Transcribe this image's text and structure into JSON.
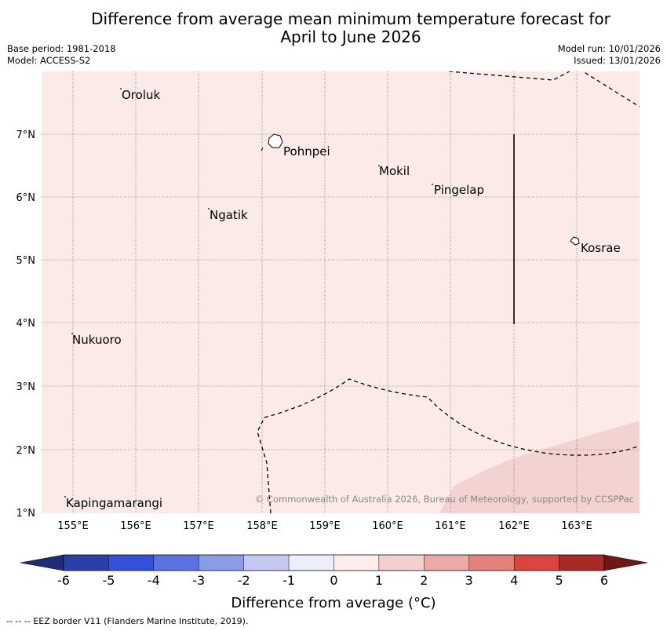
{
  "header": {
    "title_line1": "Difference from average mean minimum temperature forecast for",
    "title_line2": "April to June 2026",
    "base_period": "Base period: 1981-2018",
    "model": "Model: ACCESS-S2",
    "model_run": "Model run: 10/01/2026",
    "issued": "Issued: 13/01/2026"
  },
  "map": {
    "background_color": "#fbeae8",
    "warm_region_color": "#f2d3d1",
    "lat_labels": [
      "7°N",
      "6°N",
      "5°N",
      "4°N",
      "3°N",
      "2°N",
      "1°N"
    ],
    "lon_labels": [
      "155°E",
      "156°E",
      "157°E",
      "158°E",
      "159°E",
      "160°E",
      "161°E",
      "162°E",
      "163°E"
    ],
    "places": [
      "Oroluk",
      "Pohnpei",
      "Mokil",
      "Pingelap",
      "Ngatik",
      "Kosrae",
      "Nukuoro",
      "Kapingamarangi"
    ],
    "copyright": "© Commonwealth of Australia 2026, Bureau of Meteorology, supported by CCSPPac"
  },
  "colorbar": {
    "ticks": [
      "-6",
      "-5",
      "-4",
      "-3",
      "-2",
      "-1",
      "0",
      "1",
      "2",
      "3",
      "4",
      "5",
      "6"
    ],
    "colors": [
      "#2a3fa8",
      "#3451d9",
      "#5b72e0",
      "#8a9be8",
      "#c3c9f3",
      "#eceefb",
      "#fdeeec",
      "#f4cfcd",
      "#eda9a6",
      "#e5807b",
      "#d8473f",
      "#a82a25"
    ],
    "under_color": "#1e2c7a",
    "over_color": "#6e1816",
    "label": "Difference from average (°C)"
  },
  "footer": {
    "eez_legend": "--  --  -- EEZ border V11 (Flanders Marine Institute, 2019)."
  }
}
